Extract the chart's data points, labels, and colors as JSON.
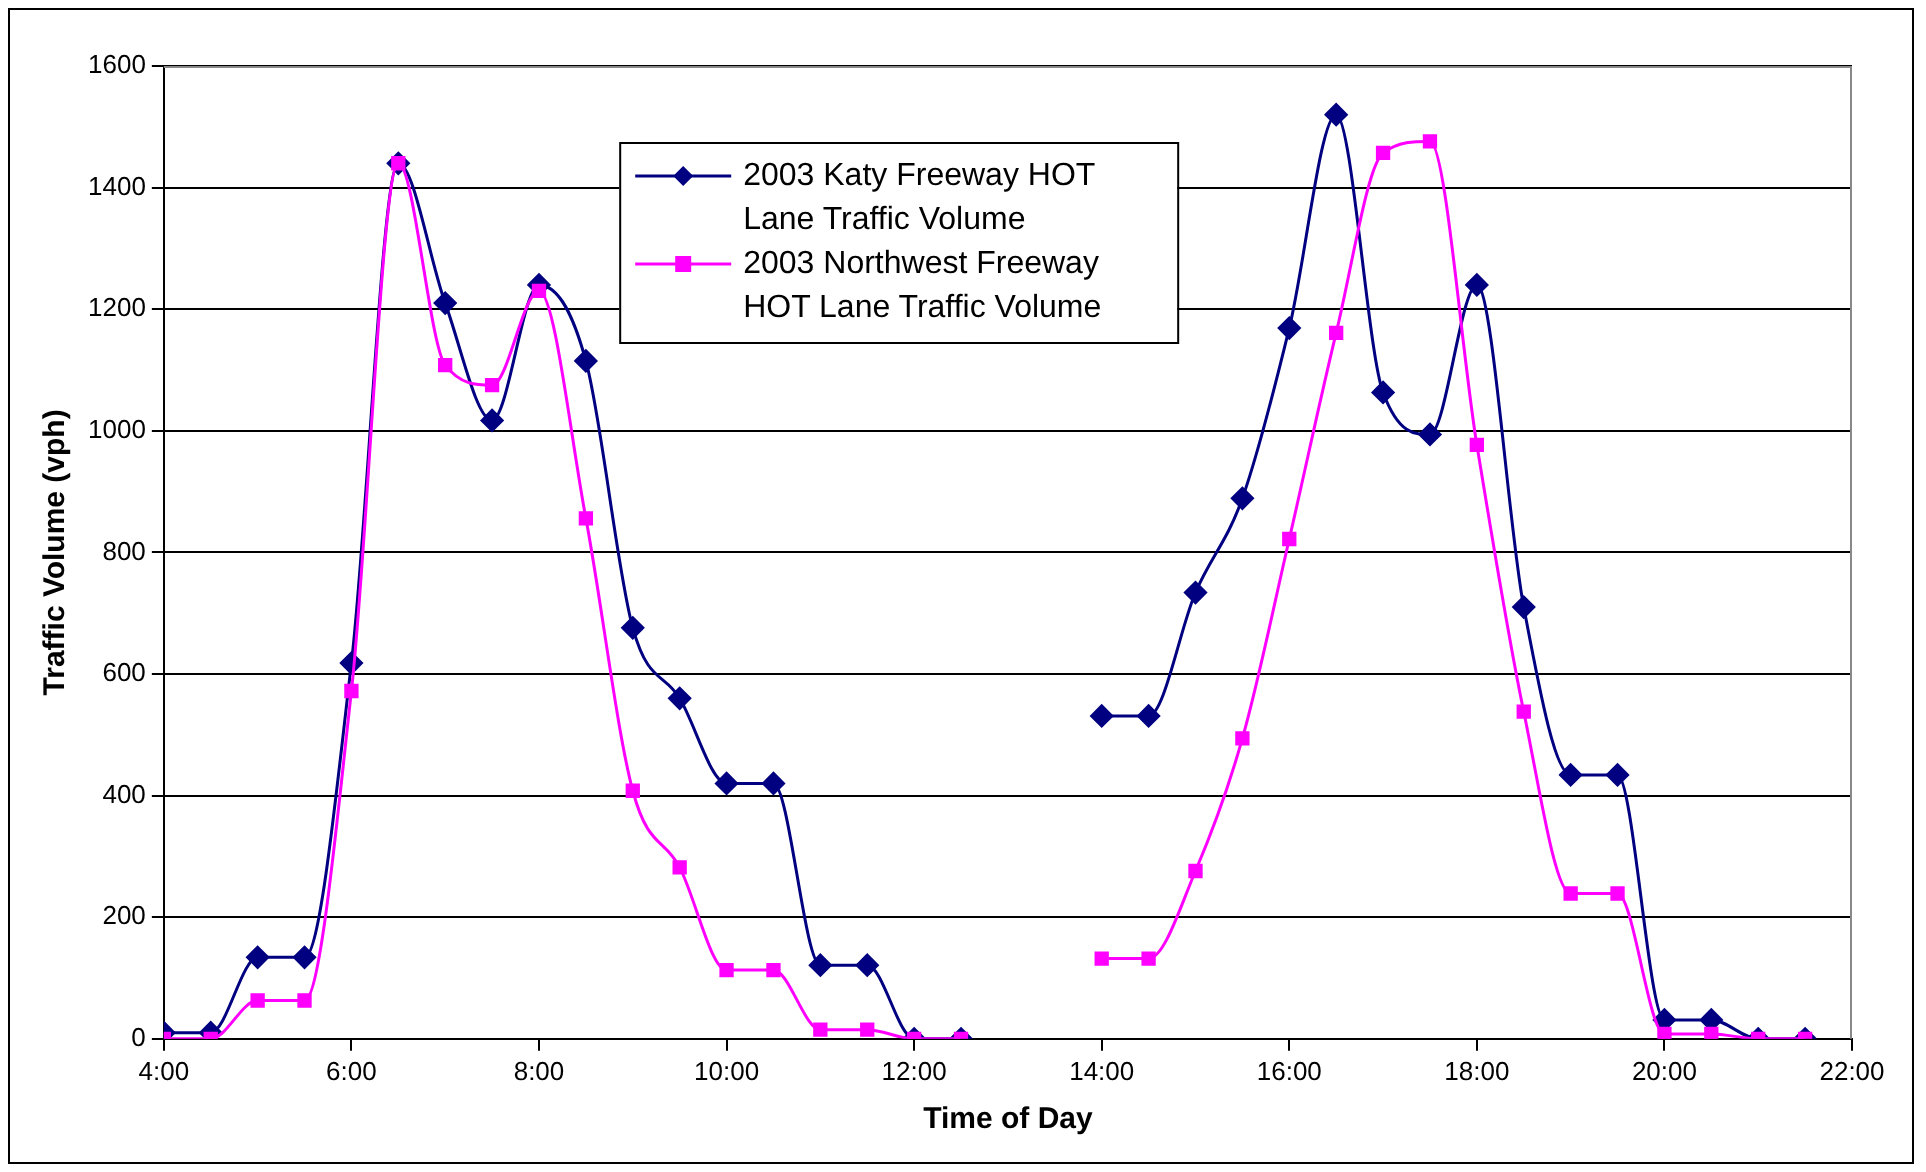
{
  "chart_data": {
    "type": "line",
    "xlabel": "Time of Day",
    "ylabel": "Traffic Volume (vph)",
    "x": [
      4,
      4.5,
      5,
      5.5,
      6,
      6.5,
      7,
      7.5,
      8,
      8.5,
      9,
      9.5,
      10,
      10.5,
      11,
      11.5,
      12,
      12.5,
      13,
      14,
      14.5,
      15,
      15.5,
      16,
      16.5,
      17,
      17.5,
      18,
      18.5,
      19,
      19.5,
      20,
      20.5,
      21,
      21.5
    ],
    "series": [
      {
        "name": "2003 Katy Freeway HOT Lane Traffic Volume",
        "color": "#000080",
        "marker": "diamond",
        "values": [
          10,
          10,
          134,
          134,
          618,
          1440,
          1210,
          1017,
          1240,
          1115,
          676,
          560,
          420,
          420,
          121,
          121,
          0,
          0,
          null,
          531,
          531,
          734,
          889,
          1169,
          1520,
          1063,
          994,
          1240,
          710,
          434,
          434,
          31,
          31,
          0,
          0
        ]
      },
      {
        "name": "2003 Northwest Freeway HOT Lane Traffic Volume",
        "color": "#ff00ff",
        "marker": "square",
        "values": [
          0,
          0,
          63,
          63,
          572,
          1440,
          1108,
          1075,
          1230,
          856,
          408,
          282,
          113,
          113,
          15,
          15,
          0,
          0,
          null,
          132,
          132,
          276,
          494,
          822,
          1161,
          1457,
          1476,
          977,
          538,
          239,
          239,
          8,
          8,
          0,
          0
        ]
      }
    ],
    "xlim": [
      4,
      22
    ],
    "xticks": [
      {
        "value": 4,
        "label": "4:00"
      },
      {
        "value": 6,
        "label": "6:00"
      },
      {
        "value": 8,
        "label": "8:00"
      },
      {
        "value": 10,
        "label": "10:00"
      },
      {
        "value": 12,
        "label": "12:00"
      },
      {
        "value": 14,
        "label": "14:00"
      },
      {
        "value": 16,
        "label": "16:00"
      },
      {
        "value": 18,
        "label": "18:00"
      },
      {
        "value": 20,
        "label": "20:00"
      },
      {
        "value": 22,
        "label": "22:00"
      }
    ],
    "ylim": [
      0,
      1600
    ],
    "yticks": [
      0,
      200,
      400,
      600,
      800,
      1000,
      1200,
      1400,
      1600
    ],
    "grid": "y",
    "legend": "top",
    "line_style": "solid"
  }
}
